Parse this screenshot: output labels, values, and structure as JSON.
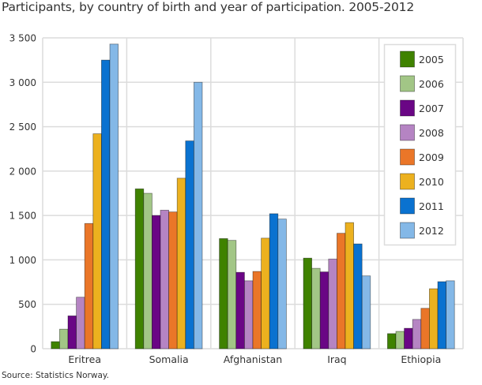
{
  "title": "Participants, by country of birth and year of participation. 2005-2012",
  "source": "Source: Statistics Norway.",
  "colors": {
    "2005": "#3f8200",
    "2006": "#a2c686",
    "2007": "#6a0685",
    "2008": "#b584c3",
    "2009": "#ea7628",
    "2010": "#ecb11f",
    "2011": "#0a72d0",
    "2012": "#84b8e7"
  },
  "chart_data": {
    "type": "bar",
    "title": "Participants, by country of birth and year of participation. 2005-2012",
    "xlabel": "",
    "ylabel": "",
    "categories": [
      "Eritrea",
      "Somalia",
      "Afghanistan",
      "Iraq",
      "Ethiopia"
    ],
    "series": [
      {
        "name": "2005",
        "values": [
          80,
          1800,
          1240,
          1020,
          170
        ]
      },
      {
        "name": "2006",
        "values": [
          220,
          1750,
          1220,
          905,
          195
        ]
      },
      {
        "name": "2007",
        "values": [
          370,
          1500,
          860,
          865,
          230
        ]
      },
      {
        "name": "2008",
        "values": [
          580,
          1560,
          765,
          1010,
          330
        ]
      },
      {
        "name": "2009",
        "values": [
          1410,
          1540,
          870,
          1300,
          455
        ]
      },
      {
        "name": "2010",
        "values": [
          2420,
          1920,
          1245,
          1420,
          675
        ]
      },
      {
        "name": "2011",
        "values": [
          3250,
          2340,
          1520,
          1180,
          755
        ]
      },
      {
        "name": "2012",
        "values": [
          3430,
          3000,
          1460,
          820,
          765
        ]
      }
    ],
    "ylim": [
      0,
      3500
    ],
    "yticks": [
      0,
      500,
      1000,
      1500,
      2000,
      2500,
      3000,
      3500
    ],
    "ytick_labels": [
      "0",
      "500",
      "1 000",
      "1 500",
      "2 000",
      "2 500",
      "3 000",
      "3 500"
    ],
    "grid": true,
    "legend_position": "top-right-inside",
    "source": "Source: Statistics Norway."
  }
}
